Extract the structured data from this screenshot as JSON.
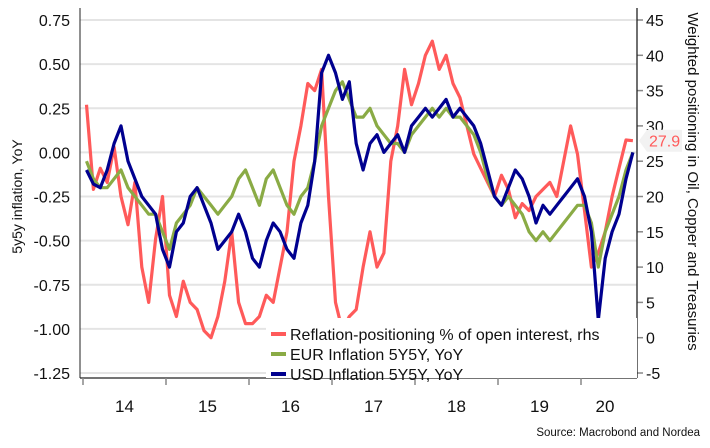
{
  "chart_data": {
    "type": "line",
    "title": "",
    "ylabel": "5y5y inflation,  YoY",
    "y2label": "Weighted positioning in Oil, Copper and Treasuries",
    "ylim": [
      -1.25,
      0.75
    ],
    "y2lim": [
      -5,
      45
    ],
    "yticks": [
      "0.75",
      "0.50",
      "0.25",
      "0.00",
      "-0.25",
      "-0.50",
      "-0.75",
      "-1.00",
      "-1.25"
    ],
    "y2ticks": [
      "45",
      "40",
      "35",
      "30",
      "25",
      "20",
      "15",
      "10",
      "5",
      "0",
      "-5"
    ],
    "xticks": [
      "14",
      "15",
      "16",
      "17",
      "18",
      "19",
      "20"
    ],
    "x_start": "2014-01",
    "x_step": "monthly",
    "grid": true,
    "legend_position": "bottom-right",
    "last_value_label": "27.9",
    "source": "Source: Macrobond and Nordea",
    "series": [
      {
        "name": "Reflation-positioning % of open interest, rhs",
        "axis": "right",
        "color": "#ff5a5a",
        "values": [
          33,
          21,
          24,
          22,
          27,
          20,
          16,
          22,
          10,
          5,
          14,
          20,
          6,
          3,
          8,
          5,
          4,
          1,
          0,
          3,
          8,
          15,
          5,
          2,
          2,
          3,
          6,
          5,
          10,
          15,
          25,
          30,
          36,
          35,
          38,
          20,
          5,
          1,
          3,
          4,
          10,
          15,
          10,
          12,
          25,
          30,
          38,
          33,
          36,
          40,
          42,
          38,
          40,
          36,
          34,
          30,
          26,
          24,
          22,
          20,
          23,
          21,
          17,
          19,
          18,
          20,
          21,
          22,
          20,
          25,
          30,
          26,
          18,
          10,
          12,
          15,
          20,
          24,
          28,
          27.9
        ]
      },
      {
        "name": "EUR Inflation 5Y5Y, YoY",
        "axis": "left",
        "color": "#8aab45",
        "values": [
          -0.05,
          -0.15,
          -0.2,
          -0.2,
          -0.15,
          -0.1,
          -0.2,
          -0.25,
          -0.3,
          -0.35,
          -0.35,
          -0.45,
          -0.55,
          -0.4,
          -0.35,
          -0.3,
          -0.2,
          -0.25,
          -0.3,
          -0.35,
          -0.3,
          -0.25,
          -0.15,
          -0.1,
          -0.2,
          -0.3,
          -0.15,
          -0.1,
          -0.2,
          -0.3,
          -0.35,
          -0.25,
          -0.2,
          -0.05,
          0.15,
          0.25,
          0.35,
          0.4,
          0.3,
          0.2,
          0.2,
          0.25,
          0.15,
          0.1,
          0.05,
          0.05,
          0.0,
          0.1,
          0.15,
          0.2,
          0.25,
          0.2,
          0.25,
          0.2,
          0.2,
          0.15,
          0.1,
          0.0,
          -0.15,
          -0.25,
          -0.3,
          -0.25,
          -0.3,
          -0.35,
          -0.45,
          -0.5,
          -0.45,
          -0.5,
          -0.45,
          -0.4,
          -0.35,
          -0.3,
          -0.3,
          -0.4,
          -0.65,
          -0.45,
          -0.35,
          -0.25,
          -0.1,
          0.0
        ]
      },
      {
        "name": "USD Inflation 5Y5Y, YoY",
        "axis": "left",
        "color": "#00008f",
        "values": [
          -0.1,
          -0.18,
          -0.2,
          -0.1,
          0.05,
          0.15,
          -0.05,
          -0.15,
          -0.25,
          -0.3,
          -0.35,
          -0.55,
          -0.65,
          -0.45,
          -0.4,
          -0.25,
          -0.2,
          -0.3,
          -0.4,
          -0.55,
          -0.5,
          -0.45,
          -0.35,
          -0.45,
          -0.6,
          -0.65,
          -0.5,
          -0.4,
          -0.45,
          -0.55,
          -0.6,
          -0.4,
          -0.3,
          -0.05,
          0.45,
          0.55,
          0.45,
          0.3,
          0.4,
          0.05,
          -0.1,
          0.05,
          0.1,
          0.0,
          0.05,
          0.1,
          0.0,
          0.15,
          0.2,
          0.25,
          0.2,
          0.25,
          0.3,
          0.2,
          0.25,
          0.2,
          0.15,
          0.05,
          -0.1,
          -0.25,
          -0.3,
          -0.2,
          -0.1,
          -0.15,
          -0.25,
          -0.4,
          -0.3,
          -0.35,
          -0.3,
          -0.25,
          -0.2,
          -0.15,
          -0.25,
          -0.45,
          -0.95,
          -0.6,
          -0.45,
          -0.35,
          -0.15,
          0.0
        ]
      }
    ]
  }
}
